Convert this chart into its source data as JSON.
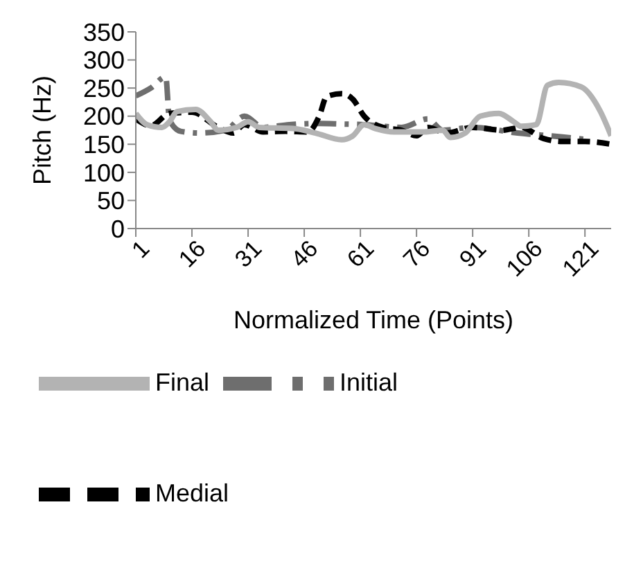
{
  "chart_data": {
    "type": "line",
    "xlabel": "Normalized Time (Points)",
    "ylabel": "Pitch (Hz)",
    "xlim": [
      1,
      128
    ],
    "xticks": [
      1,
      16,
      31,
      46,
      61,
      76,
      91,
      106,
      121
    ],
    "ylim": [
      0,
      350
    ],
    "yticks": [
      0,
      50,
      100,
      150,
      200,
      250,
      300,
      350
    ],
    "grid": false,
    "legend": "bottom",
    "marker": "none",
    "series": [
      {
        "name": "Initial",
        "color": "#6e6e6e",
        "line_style": "dashdot",
        "x": [
          1,
          5,
          9,
          10,
          13,
          18,
          25,
          30,
          35,
          42,
          50,
          56,
          62,
          72,
          79,
          83,
          91,
          103,
          115,
          122
        ],
        "values": [
          236,
          250,
          270,
          193,
          173,
          170,
          175,
          200,
          180,
          185,
          187,
          186,
          185,
          180,
          195,
          175,
          180,
          170,
          163,
          158
        ]
      },
      {
        "name": "Medial",
        "color": "#000000",
        "line_style": "dashed",
        "x": [
          1,
          5,
          10,
          16,
          23,
          27,
          30,
          35,
          41,
          47,
          50,
          52,
          56,
          59,
          62,
          67,
          72,
          76,
          79,
          84,
          91,
          99,
          104,
          110,
          115,
          121,
          128
        ],
        "values": [
          195,
          183,
          205,
          207,
          180,
          170,
          185,
          172,
          173,
          172,
          200,
          235,
          240,
          230,
          200,
          180,
          175,
          165,
          180,
          170,
          180,
          175,
          180,
          160,
          155,
          155,
          150
        ]
      },
      {
        "name": "Final",
        "color": "#b3b3b3",
        "line_style": "solid",
        "x": [
          1,
          4,
          8,
          10,
          12,
          17,
          21,
          23,
          28,
          31,
          34,
          43,
          49,
          56,
          59,
          62,
          65,
          70,
          78,
          83,
          85,
          89,
          93,
          98,
          102,
          104,
          108,
          111,
          114,
          120,
          125,
          128
        ],
        "values": [
          205,
          185,
          180,
          190,
          208,
          212,
          190,
          175,
          180,
          190,
          180,
          178,
          170,
          158,
          165,
          185,
          178,
          172,
          172,
          175,
          162,
          170,
          200,
          205,
          190,
          182,
          185,
          255,
          260,
          252,
          210,
          165
        ]
      }
    ]
  }
}
